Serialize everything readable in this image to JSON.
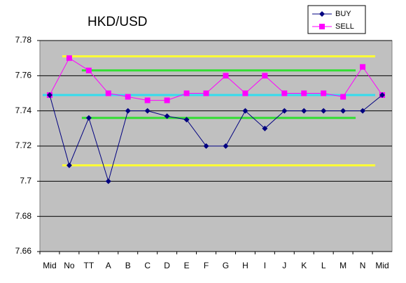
{
  "chart_data": {
    "type": "line",
    "title": "HKD/USD",
    "categories": [
      "Mid",
      "No",
      "TT",
      "A",
      "B",
      "C",
      "D",
      "E",
      "F",
      "G",
      "H",
      "I",
      "J",
      "K",
      "L",
      "M",
      "N",
      "Mid"
    ],
    "series": [
      {
        "name": "BUY",
        "color": "#000080",
        "marker": "diamond",
        "values": [
          7.749,
          7.709,
          7.736,
          7.7,
          7.74,
          7.74,
          7.737,
          7.735,
          7.72,
          7.72,
          7.74,
          7.73,
          7.74,
          7.74,
          7.74,
          7.74,
          7.74,
          7.749
        ]
      },
      {
        "name": "SELL",
        "color": "#ff00ff",
        "marker": "square",
        "values": [
          7.749,
          7.77,
          7.763,
          7.75,
          7.748,
          7.746,
          7.746,
          7.75,
          7.75,
          7.76,
          7.75,
          7.76,
          7.75,
          7.75,
          7.75,
          7.748,
          7.765,
          7.749
        ]
      }
    ],
    "reference_lines": [
      {
        "value": 7.771,
        "color": "#ffff33",
        "span": [
          1,
          17
        ]
      },
      {
        "value": 7.709,
        "color": "#ffff33",
        "span": [
          1,
          17
        ]
      },
      {
        "value": 7.763,
        "color": "#33dd33",
        "span": [
          2,
          16
        ]
      },
      {
        "value": 7.736,
        "color": "#33dd33",
        "span": [
          2,
          16
        ]
      },
      {
        "value": 7.749,
        "color": "#33ddee",
        "span": [
          0,
          17
        ]
      }
    ],
    "ylim": [
      7.66,
      7.78
    ],
    "yticks": [
      7.66,
      7.68,
      7.7,
      7.72,
      7.74,
      7.76,
      7.78
    ],
    "grid": true,
    "plot_background": "#c0c0c0",
    "legend": "top-right"
  }
}
